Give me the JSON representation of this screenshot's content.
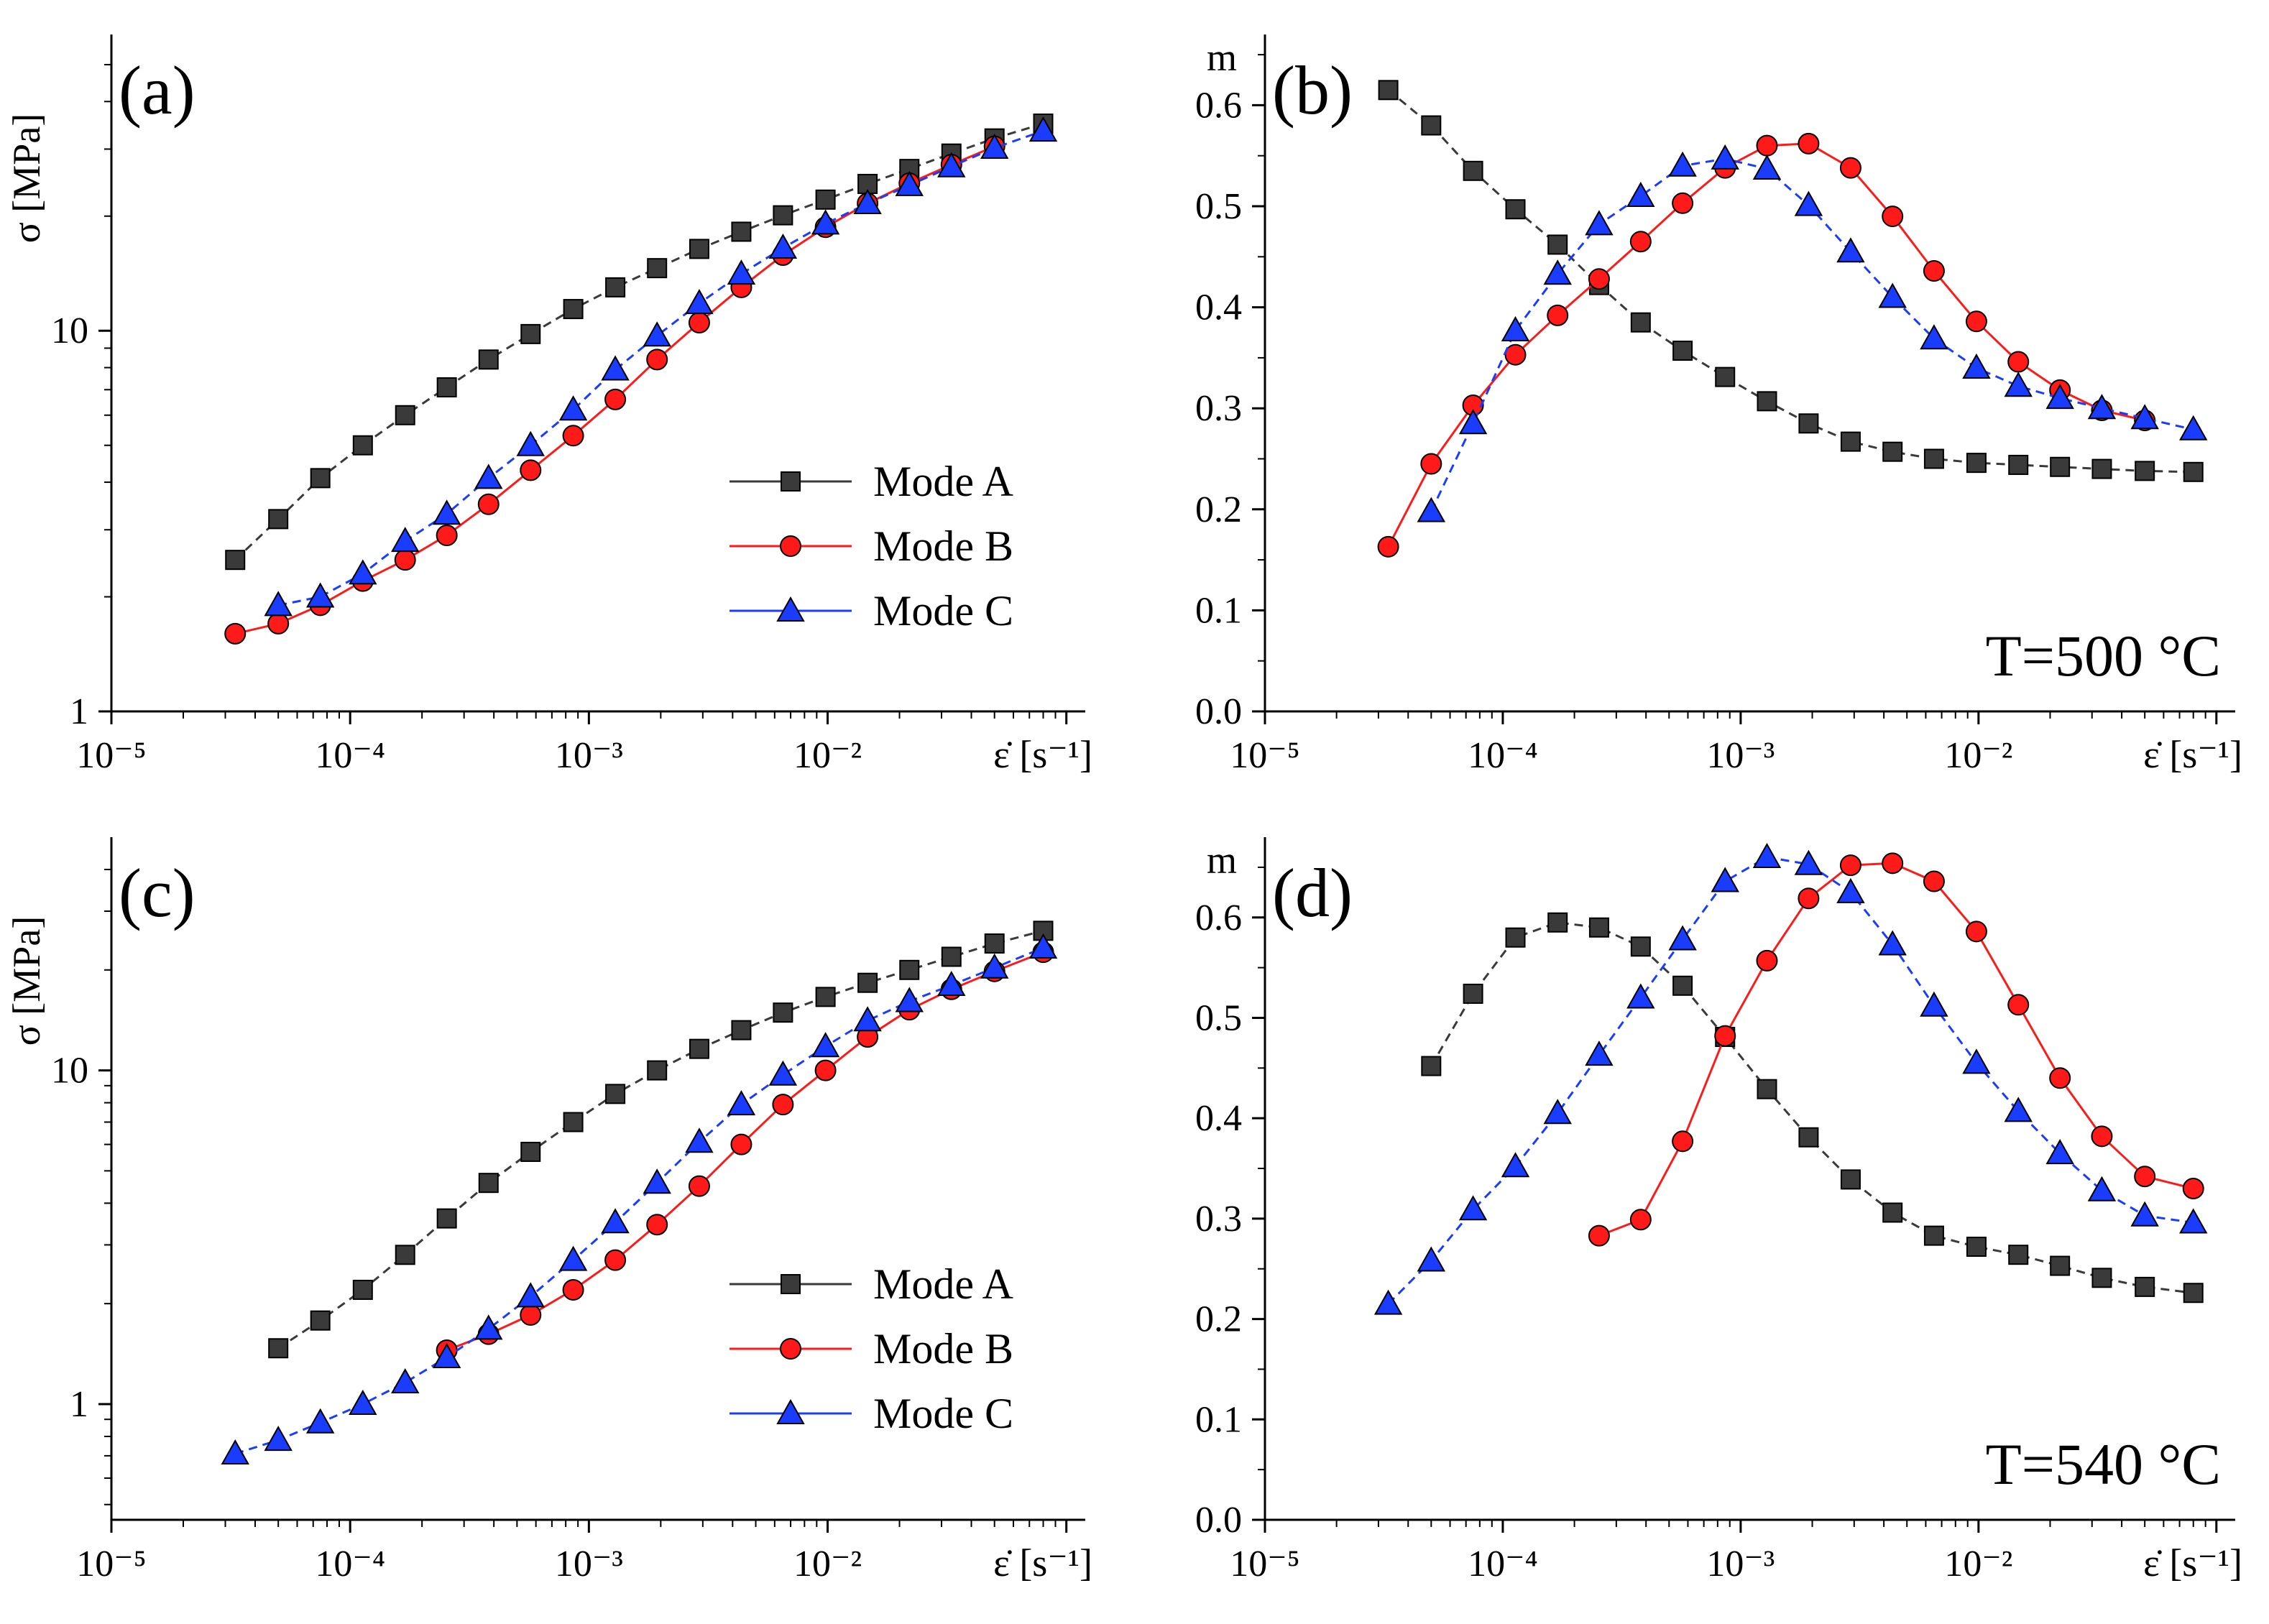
{
  "series_styles": {
    "Mode A": {
      "color": "#3a3a3a",
      "marker": "square",
      "dash": "12 8"
    },
    "Mode B": {
      "color": "#ff1a1a",
      "marker": "circle",
      "dash": ""
    },
    "Mode C": {
      "color": "#1a3cff",
      "marker": "triangle",
      "dash": "12 8"
    }
  },
  "legend_entries": [
    "Mode A",
    "Mode B",
    "Mode C"
  ],
  "chart_data": [
    {
      "panel": "(a)",
      "type": "line",
      "xlabel": "ε̇ [s⁻¹]",
      "ylabel": "σ [MPa]",
      "xscale": "log",
      "yscale": "log",
      "xlim": [
        1e-05,
        0.12
      ],
      "ylim": [
        1,
        60
      ],
      "xticks": [
        "10⁻⁵",
        "10⁻⁴",
        "10⁻³",
        "10⁻²"
      ],
      "yticks": [
        "1",
        "10"
      ],
      "legend": "center-right",
      "series": [
        {
          "name": "Mode A",
          "x": [
            3.3e-05,
            5e-05,
            7.5e-05,
            0.000113,
            0.00017,
            0.000254,
            0.00038,
            0.00057,
            0.00086,
            0.00129,
            0.00193,
            0.0029,
            0.00435,
            0.0065,
            0.0098,
            0.0147,
            0.022,
            0.033,
            0.05,
            0.08
          ],
          "y": [
            2.5,
            3.2,
            4.1,
            5.0,
            6.0,
            7.1,
            8.4,
            9.8,
            11.4,
            13.0,
            14.6,
            16.4,
            18.2,
            20.1,
            22.1,
            24.3,
            26.6,
            29.2,
            32.0,
            35.0
          ]
        },
        {
          "name": "Mode B",
          "x": [
            3.3e-05,
            5e-05,
            7.5e-05,
            0.000113,
            0.00017,
            0.000254,
            0.00038,
            0.00057,
            0.00086,
            0.00129,
            0.00193,
            0.0029,
            0.00435,
            0.0065,
            0.0098,
            0.0147,
            0.022,
            0.033,
            0.05
          ],
          "y": [
            1.6,
            1.7,
            1.9,
            2.2,
            2.5,
            2.9,
            3.5,
            4.3,
            5.3,
            6.6,
            8.4,
            10.5,
            13.0,
            15.8,
            18.7,
            21.6,
            24.4,
            27.3,
            30.5
          ]
        },
        {
          "name": "Mode C",
          "x": [
            5e-05,
            7.5e-05,
            0.000113,
            0.00017,
            0.000254,
            0.00038,
            0.00057,
            0.00086,
            0.00129,
            0.00193,
            0.0029,
            0.00435,
            0.0065,
            0.0098,
            0.0147,
            0.022,
            0.033,
            0.05,
            0.08
          ],
          "y": [
            1.9,
            2.0,
            2.3,
            2.8,
            3.3,
            4.1,
            5.0,
            6.2,
            7.9,
            9.7,
            11.8,
            14.1,
            16.5,
            19.1,
            21.6,
            24.1,
            27.0,
            30.2,
            33.5
          ]
        }
      ]
    },
    {
      "panel": "(b)",
      "type": "line",
      "xlabel": "ε̇ [s⁻¹]",
      "ylabel": "m",
      "xscale": "log",
      "yscale": "linear",
      "xlim": [
        1e-05,
        0.12
      ],
      "ylim": [
        0.0,
        0.67
      ],
      "xticks": [
        "10⁻⁵",
        "10⁻⁴",
        "10⁻³",
        "10⁻²"
      ],
      "yticks": [
        "0.0",
        "0.1",
        "0.2",
        "0.3",
        "0.4",
        "0.5",
        "0.6"
      ],
      "annotation": "T=500 °C",
      "series": [
        {
          "name": "Mode A",
          "x": [
            3.3e-05,
            5e-05,
            7.5e-05,
            0.000113,
            0.00017,
            0.000254,
            0.00038,
            0.00057,
            0.00086,
            0.00129,
            0.00193,
            0.0029,
            0.00435,
            0.0065,
            0.0098,
            0.0147,
            0.022,
            0.033,
            0.05,
            0.08
          ],
          "y": [
            0.615,
            0.58,
            0.535,
            0.497,
            0.462,
            0.422,
            0.385,
            0.357,
            0.331,
            0.307,
            0.285,
            0.267,
            0.257,
            0.25,
            0.246,
            0.244,
            0.242,
            0.24,
            0.238,
            0.237
          ]
        },
        {
          "name": "Mode B",
          "x": [
            3.3e-05,
            5e-05,
            7.5e-05,
            0.000113,
            0.00017,
            0.000254,
            0.00038,
            0.00057,
            0.00086,
            0.00129,
            0.00193,
            0.0029,
            0.00435,
            0.0065,
            0.0098,
            0.0147,
            0.022,
            0.033,
            0.05
          ],
          "y": [
            0.163,
            0.245,
            0.303,
            0.353,
            0.392,
            0.428,
            0.465,
            0.503,
            0.538,
            0.56,
            0.562,
            0.538,
            0.49,
            0.436,
            0.386,
            0.346,
            0.318,
            0.298,
            0.288
          ]
        },
        {
          "name": "Mode C",
          "x": [
            5e-05,
            7.5e-05,
            0.000113,
            0.00017,
            0.000254,
            0.00038,
            0.00057,
            0.00086,
            0.00129,
            0.00193,
            0.0029,
            0.00435,
            0.0065,
            0.0098,
            0.0147,
            0.022,
            0.033,
            0.05,
            0.08
          ],
          "y": [
            0.198,
            0.285,
            0.377,
            0.433,
            0.482,
            0.51,
            0.54,
            0.547,
            0.537,
            0.501,
            0.455,
            0.41,
            0.369,
            0.34,
            0.322,
            0.31,
            0.3,
            0.29,
            0.279
          ]
        }
      ]
    },
    {
      "panel": "(c)",
      "type": "line",
      "xlabel": "ε̇ [s⁻¹]",
      "ylabel": "σ [MPa]",
      "xscale": "log",
      "yscale": "log",
      "xlim": [
        1e-05,
        0.12
      ],
      "ylim": [
        0.45,
        50
      ],
      "xticks": [
        "10⁻⁵",
        "10⁻⁴",
        "10⁻³",
        "10⁻²"
      ],
      "yticks": [
        "1",
        "10"
      ],
      "legend": "center-right",
      "series": [
        {
          "name": "Mode A",
          "x": [
            5e-05,
            7.5e-05,
            0.000113,
            0.00017,
            0.000254,
            0.00038,
            0.00057,
            0.00086,
            0.00129,
            0.00193,
            0.0029,
            0.00435,
            0.0065,
            0.0098,
            0.0147,
            0.022,
            0.033,
            0.05,
            0.08
          ],
          "y": [
            1.47,
            1.78,
            2.2,
            2.8,
            3.6,
            4.6,
            5.7,
            7.0,
            8.5,
            10.0,
            11.6,
            13.2,
            14.9,
            16.6,
            18.3,
            20.0,
            21.9,
            24.0,
            26.2
          ]
        },
        {
          "name": "Mode B",
          "x": [
            0.000254,
            0.00038,
            0.00057,
            0.00086,
            0.00129,
            0.00193,
            0.0029,
            0.00435,
            0.0065,
            0.0098,
            0.0147,
            0.022,
            0.033,
            0.05,
            0.08
          ],
          "y": [
            1.45,
            1.62,
            1.85,
            2.2,
            2.7,
            3.45,
            4.5,
            6.0,
            7.9,
            10.0,
            12.6,
            15.2,
            17.5,
            19.8,
            22.6
          ]
        },
        {
          "name": "Mode C",
          "x": [
            3.3e-05,
            5e-05,
            7.5e-05,
            0.000113,
            0.00017,
            0.000254,
            0.00038,
            0.00057,
            0.00086,
            0.00129,
            0.00193,
            0.0029,
            0.00435,
            0.0065,
            0.0098,
            0.0147,
            0.022,
            0.033,
            0.05,
            0.08
          ],
          "y": [
            0.71,
            0.78,
            0.88,
            1.0,
            1.16,
            1.38,
            1.68,
            2.1,
            2.7,
            3.5,
            4.6,
            6.1,
            7.9,
            9.7,
            11.8,
            14.1,
            16.1,
            18.0,
            20.3,
            23.3
          ]
        }
      ]
    },
    {
      "panel": "(d)",
      "type": "line",
      "xlabel": "ε̇ [s⁻¹]",
      "ylabel": "m",
      "xscale": "log",
      "yscale": "linear",
      "xlim": [
        1e-05,
        0.12
      ],
      "ylim": [
        0.0,
        0.68
      ],
      "xticks": [
        "10⁻⁵",
        "10⁻⁴",
        "10⁻³",
        "10⁻²"
      ],
      "yticks": [
        "0.0",
        "0.1",
        "0.2",
        "0.3",
        "0.4",
        "0.5",
        "0.6"
      ],
      "annotation": "T=540 °C",
      "series": [
        {
          "name": "Mode A",
          "x": [
            5e-05,
            7.5e-05,
            0.000113,
            0.00017,
            0.000254,
            0.00038,
            0.00057,
            0.00086,
            0.00129,
            0.00193,
            0.0029,
            0.00435,
            0.0065,
            0.0098,
            0.0147,
            0.022,
            0.033,
            0.05,
            0.08
          ],
          "y": [
            0.452,
            0.524,
            0.58,
            0.595,
            0.59,
            0.571,
            0.532,
            0.481,
            0.429,
            0.381,
            0.339,
            0.306,
            0.283,
            0.272,
            0.264,
            0.253,
            0.241,
            0.232,
            0.226
          ]
        },
        {
          "name": "Mode B",
          "x": [
            0.000254,
            0.00038,
            0.00057,
            0.00086,
            0.00129,
            0.00193,
            0.0029,
            0.00435,
            0.0065,
            0.0098,
            0.0147,
            0.022,
            0.033,
            0.05,
            0.08
          ],
          "y": [
            0.283,
            0.299,
            0.377,
            0.482,
            0.557,
            0.619,
            0.652,
            0.654,
            0.636,
            0.586,
            0.513,
            0.44,
            0.382,
            0.342,
            0.33
          ]
        },
        {
          "name": "Mode C",
          "x": [
            3.3e-05,
            5e-05,
            7.5e-05,
            0.000113,
            0.00017,
            0.000254,
            0.00038,
            0.00057,
            0.00086,
            0.00129,
            0.00193,
            0.0029,
            0.00435,
            0.0065,
            0.0098,
            0.0147,
            0.022,
            0.033,
            0.05,
            0.08
          ],
          "y": [
            0.215,
            0.258,
            0.309,
            0.352,
            0.405,
            0.463,
            0.52,
            0.578,
            0.636,
            0.66,
            0.653,
            0.625,
            0.573,
            0.512,
            0.455,
            0.407,
            0.365,
            0.328,
            0.303,
            0.296
          ]
        }
      ]
    }
  ]
}
